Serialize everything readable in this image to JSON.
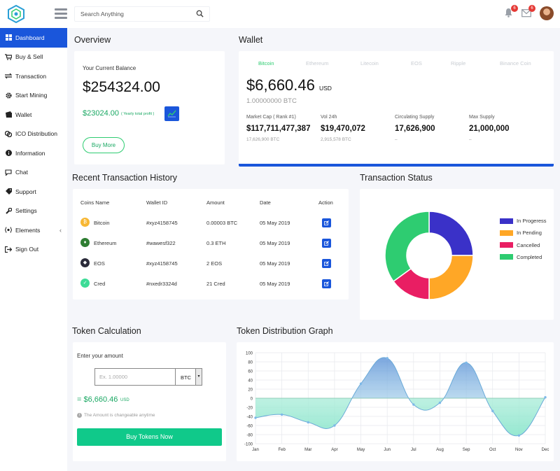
{
  "header": {
    "search_placeholder": "Search Anything",
    "notifications_count": "6",
    "messages_count": "6"
  },
  "sidebar": {
    "items": [
      {
        "label": "Dashboard",
        "icon": "dashboard-icon"
      },
      {
        "label": "Buy & Sell",
        "icon": "cart-icon"
      },
      {
        "label": "Transaction",
        "icon": "transfer-icon"
      },
      {
        "label": "Start Mining",
        "icon": "gear-icon"
      },
      {
        "label": "Wallet",
        "icon": "wallet-icon"
      },
      {
        "label": "ICO Distribution",
        "icon": "coins-icon"
      },
      {
        "label": "Information",
        "icon": "info-icon"
      },
      {
        "label": "Chat",
        "icon": "chat-icon"
      },
      {
        "label": "Support",
        "icon": "tag-icon"
      },
      {
        "label": "Settings",
        "icon": "wrench-icon"
      },
      {
        "label": "Elements",
        "icon": "elements-icon"
      },
      {
        "label": "Sign Out",
        "icon": "sign-out-icon"
      }
    ]
  },
  "overview": {
    "title": "Overview",
    "balance_label": "Your Current Balance",
    "balance": "$254324.00",
    "profit": "$23024.00",
    "profit_note": "( Yearly total profit )",
    "buy_more": "Buy More"
  },
  "wallet": {
    "title": "Wallet",
    "tabs": [
      "Bitcoin",
      "Ethereum",
      "Litecoin",
      "EOS",
      "Ripple",
      "Binance Coin"
    ],
    "amount": "$6,660.46",
    "currency": "USD",
    "btc": "1.00000000 BTC",
    "stats": [
      {
        "label": "Market Cap ( Rank #1)",
        "value": "$117,711,477,387",
        "sub": "17,626,900 BTC"
      },
      {
        "label": "Vol 24h",
        "value": "$19,470,072",
        "sub": "2,915,578 BTC"
      },
      {
        "label": "Circulating Supply",
        "value": "17,626,900",
        "sub": "–"
      },
      {
        "label": "Max Supply",
        "value": "21,000,000",
        "sub": "–"
      }
    ],
    "accent": "#1a56db"
  },
  "transactions": {
    "title": "Recent Transaction History",
    "headers": [
      "Coins Name",
      "Wallet ID",
      "Amount",
      "Date",
      "Action"
    ],
    "rows": [
      {
        "coin": "Bitcoin",
        "wallet": "#xyz4158745",
        "amount": "0.00003 BTC",
        "date": "05 May 2019",
        "icon_color": "#f7b733"
      },
      {
        "coin": "Ethereum",
        "wallet": "#wawesf322",
        "amount": "0.3 ETH",
        "date": "05 May 2019",
        "icon_color": "#2e7d32"
      },
      {
        "coin": "EOS",
        "wallet": "#xyz4158745",
        "amount": "2 EOS",
        "date": "05 May 2019",
        "icon_color": "#2b2b3a"
      },
      {
        "coin": "Cred",
        "wallet": "#nxedr3324d",
        "amount": "21 Cred",
        "date": "05 May 2019",
        "icon_color": "#3ddc97"
      }
    ]
  },
  "status": {
    "title": "Transaction Status",
    "legend": [
      {
        "label": "In Progeress",
        "color": "#3a31c8"
      },
      {
        "label": "In Pending",
        "color": "#ffa726"
      },
      {
        "label": "Cancelled",
        "color": "#e91e63"
      },
      {
        "label": "Completed",
        "color": "#2ecc71"
      }
    ]
  },
  "token_calc": {
    "title": "Token Calculation",
    "prompt": "Enter your amount",
    "placeholder": "Ex. 1.00000",
    "currency": "BTC",
    "result": "= $6,660.46",
    "result_unit": "USD",
    "note": "The Amount is changeable anytime",
    "button": "Buy Tokens Now"
  },
  "chart_data": {
    "type": "area",
    "title": "Token Distribution Graph",
    "categories": [
      "Jan",
      "Feb",
      "Mar",
      "Apr",
      "May",
      "Jun",
      "Jul",
      "Aug",
      "Sep",
      "Oct",
      "Nov",
      "Dec"
    ],
    "values": [
      -43,
      -36,
      -53,
      -60,
      32,
      88,
      -14,
      -10,
      78,
      -28,
      -82,
      2
    ],
    "ylim": [
      -100,
      100
    ],
    "yticks": [
      100,
      80,
      60,
      40,
      20,
      0,
      -20,
      -40,
      -60,
      -80,
      -100
    ],
    "grid": true,
    "colors": {
      "positive": "#5a8fd6",
      "negative": "#7fe3c7",
      "point": "#7db8e8"
    }
  },
  "donut": {
    "type": "pie",
    "values": [
      25,
      25,
      15,
      35
    ],
    "colors": [
      "#3a31c8",
      "#ffa726",
      "#e91e63",
      "#2ecc71"
    ]
  }
}
